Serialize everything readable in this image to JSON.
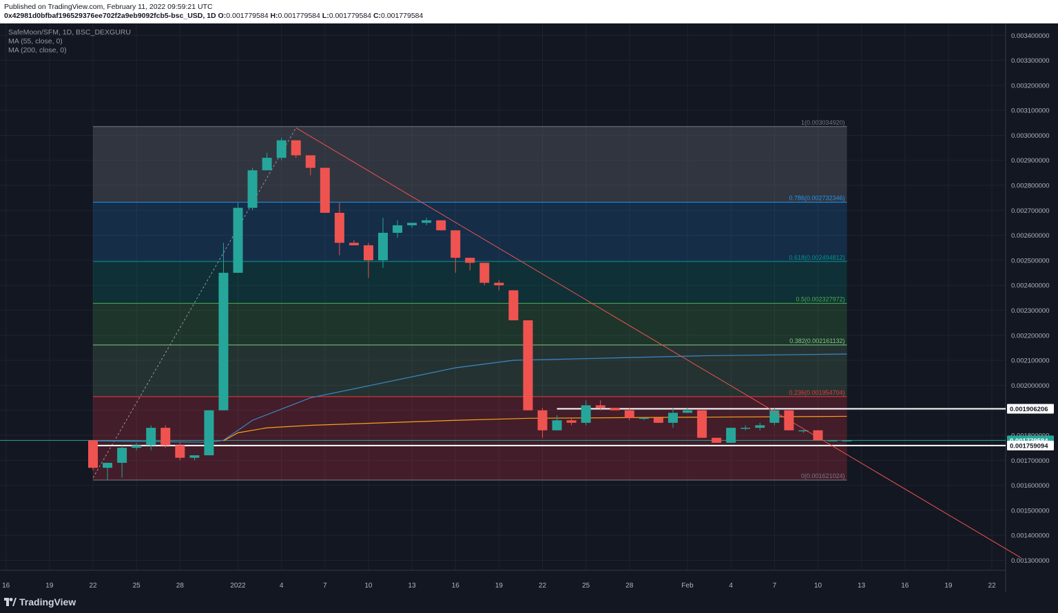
{
  "header": {
    "published": "Published on TradingView.com, February 11, 2022 09:59:21 UTC",
    "symbol_line": "0x42981d0bfbaf196529376ee702f2a9eb9092fcb5-bsc_USD, 1D",
    "ohlc": [
      {
        "k": "O:",
        "v": "0.001779584"
      },
      {
        "k": "H:",
        "v": "0.001779584"
      },
      {
        "k": "L:",
        "v": "0.001779584"
      },
      {
        "k": "C:",
        "v": "0.001779584"
      }
    ]
  },
  "legend": {
    "symbol": "SafeMoon/SFM, 1D, BSC_DEXGURU",
    "ma55": "MA (55, close, 0)",
    "ma200": "MA (200, close, 0)"
  },
  "footer": {
    "brand": "TradingView"
  },
  "colors": {
    "bg": "#131722",
    "up": "#26a69a",
    "down": "#ef5350",
    "ma55": "#f7a21b",
    "ma200": "#3b89c9",
    "trend": "#ef5350"
  },
  "chart_data": {
    "type": "candlestick",
    "y_range": [
      0.00126,
      0.00342
    ],
    "y_ticks": [
      "0.001300000",
      "0.001400000",
      "0.001500000",
      "0.001600000",
      "0.001700000",
      "0.001800000",
      "0.001900000",
      "0.002000000",
      "0.002100000",
      "0.002200000",
      "0.002300000",
      "0.002400000",
      "0.002500000",
      "0.002600000",
      "0.002700000",
      "0.002800000",
      "0.002900000",
      "0.003000000",
      "0.003100000",
      "0.003200000",
      "0.003300000",
      "0.003400000"
    ],
    "x_ticks": [
      {
        "i": -6,
        "label": "16"
      },
      {
        "i": -3,
        "label": "19"
      },
      {
        "i": 0,
        "label": "22"
      },
      {
        "i": 3,
        "label": "25"
      },
      {
        "i": 6,
        "label": "28"
      },
      {
        "i": 10,
        "label": "2022"
      },
      {
        "i": 13,
        "label": "4"
      },
      {
        "i": 16,
        "label": "7"
      },
      {
        "i": 19,
        "label": "10"
      },
      {
        "i": 22,
        "label": "13"
      },
      {
        "i": 25,
        "label": "16"
      },
      {
        "i": 28,
        "label": "19"
      },
      {
        "i": 31,
        "label": "22"
      },
      {
        "i": 34,
        "label": "25"
      },
      {
        "i": 37,
        "label": "28"
      },
      {
        "i": 41,
        "label": "Feb"
      },
      {
        "i": 44,
        "label": "4"
      },
      {
        "i": 47,
        "label": "7"
      },
      {
        "i": 50,
        "label": "10"
      },
      {
        "i": 53,
        "label": "13"
      },
      {
        "i": 56,
        "label": "16"
      },
      {
        "i": 59,
        "label": "19"
      },
      {
        "i": 62,
        "label": "22"
      }
    ],
    "candles": [
      [
        0.00178,
        0.00178,
        0.00166,
        0.00167
      ],
      [
        0.00167,
        0.00169,
        0.00162,
        0.00169
      ],
      [
        0.00169,
        0.00176,
        0.00163,
        0.00175
      ],
      [
        0.00175,
        0.00177,
        0.00174,
        0.00176
      ],
      [
        0.00176,
        0.00184,
        0.00174,
        0.00183
      ],
      [
        0.00183,
        0.00184,
        0.00175,
        0.00176
      ],
      [
        0.00176,
        0.00177,
        0.0017,
        0.00171
      ],
      [
        0.00171,
        0.00172,
        0.0017,
        0.00172
      ],
      [
        0.00172,
        0.0019,
        0.00172,
        0.0019
      ],
      [
        0.0019,
        0.00257,
        0.0019,
        0.00245
      ],
      [
        0.00245,
        0.00273,
        0.00245,
        0.00271
      ],
      [
        0.00271,
        0.00287,
        0.0027,
        0.00286
      ],
      [
        0.00286,
        0.00293,
        0.00288,
        0.00291
      ],
      [
        0.00291,
        0.00299,
        0.0029,
        0.00298
      ],
      [
        0.00298,
        0.00298,
        0.00291,
        0.00292
      ],
      [
        0.00292,
        0.00292,
        0.00284,
        0.00287
      ],
      [
        0.00287,
        0.00287,
        0.00269,
        0.00269
      ],
      [
        0.00269,
        0.00273,
        0.00252,
        0.00257
      ],
      [
        0.00257,
        0.00258,
        0.00256,
        0.00256
      ],
      [
        0.00256,
        0.00257,
        0.00243,
        0.0025
      ],
      [
        0.0025,
        0.00267,
        0.00247,
        0.00261
      ],
      [
        0.00261,
        0.00266,
        0.00259,
        0.00264
      ],
      [
        0.00264,
        0.00265,
        0.00263,
        0.00265
      ],
      [
        0.00265,
        0.00267,
        0.00264,
        0.00266
      ],
      [
        0.00266,
        0.00266,
        0.00262,
        0.00262
      ],
      [
        0.00262,
        0.00262,
        0.00245,
        0.00251
      ],
      [
        0.00251,
        0.00251,
        0.00246,
        0.00249
      ],
      [
        0.00249,
        0.00249,
        0.0024,
        0.00241
      ],
      [
        0.00241,
        0.00242,
        0.00238,
        0.0024
      ],
      [
        0.00238,
        0.00238,
        0.00226,
        0.00226
      ],
      [
        0.00226,
        0.00226,
        0.0019,
        0.0019
      ],
      [
        0.0019,
        0.00191,
        0.00179,
        0.00182
      ],
      [
        0.00182,
        0.00188,
        0.00182,
        0.00186
      ],
      [
        0.00186,
        0.00187,
        0.00184,
        0.00185
      ],
      [
        0.00185,
        0.00194,
        0.00184,
        0.00192
      ],
      [
        0.00192,
        0.00194,
        0.0019,
        0.00191
      ],
      [
        0.00191,
        0.00191,
        0.0019,
        0.0019
      ],
      [
        0.0019,
        0.00191,
        0.00186,
        0.00187
      ],
      [
        0.00187,
        0.00187,
        0.00186,
        0.00187
      ],
      [
        0.00187,
        0.00187,
        0.00185,
        0.00185
      ],
      [
        0.00185,
        0.00191,
        0.00183,
        0.00189
      ],
      [
        0.00189,
        0.00191,
        0.00189,
        0.0019
      ],
      [
        0.0019,
        0.0019,
        0.00179,
        0.00179
      ],
      [
        0.00179,
        0.00179,
        0.00177,
        0.00177
      ],
      [
        0.00177,
        0.00183,
        0.00177,
        0.00183
      ],
      [
        0.00183,
        0.00184,
        0.00182,
        0.00183
      ],
      [
        0.00183,
        0.00185,
        0.00182,
        0.00184
      ],
      [
        0.00185,
        0.00191,
        0.00184,
        0.0019
      ],
      [
        0.0019,
        0.0019,
        0.00182,
        0.00182
      ],
      [
        0.00182,
        0.00182,
        0.00181,
        0.00182
      ],
      [
        0.00182,
        0.00182,
        0.00178,
        0.00178
      ],
      [
        0.00178,
        0.00178,
        0.00178,
        0.00178
      ],
      [
        0.00178,
        0.00178,
        0.00178,
        0.00178
      ]
    ],
    "ma55": [
      [
        9,
        0.001778
      ],
      [
        10,
        0.00181
      ],
      [
        12,
        0.00183
      ],
      [
        15,
        0.00184
      ],
      [
        20,
        0.00185
      ],
      [
        25,
        0.00186
      ],
      [
        30,
        0.001868
      ],
      [
        40,
        0.001872
      ],
      [
        50,
        0.001875
      ],
      [
        52,
        0.001876
      ]
    ],
    "ma200": [
      [
        0,
        0.001778
      ],
      [
        8,
        0.001772
      ],
      [
        9,
        0.00178
      ],
      [
        11,
        0.00186
      ],
      [
        15,
        0.00195
      ],
      [
        20,
        0.00201
      ],
      [
        25,
        0.00207
      ],
      [
        29,
        0.0021
      ],
      [
        35,
        0.002108
      ],
      [
        42,
        0.002118
      ],
      [
        52,
        0.002125
      ]
    ],
    "fib": [
      {
        "label": "1(0.003034920)",
        "value": 0.00303492,
        "color": "#787b86",
        "fill": "rgba(120,123,134,0.30)"
      },
      {
        "label": "0.786(0.002732346)",
        "value": 0.002732346,
        "color": "#2196f3",
        "fill": "rgba(33,150,243,0.18)"
      },
      {
        "label": "0.618(0.002494812)",
        "value": 0.002494812,
        "color": "#009688",
        "fill": "rgba(0,150,136,0.20)"
      },
      {
        "label": "0.5(0.002327972)",
        "value": 0.002327972,
        "color": "#4caf50",
        "fill": "rgba(76,175,80,0.20)"
      },
      {
        "label": "0.382(0.002161132)",
        "value": 0.002161132,
        "color": "#81c784",
        "fill": "rgba(129,199,132,0.16)"
      },
      {
        "label": "0.236(0.001954704)",
        "value": 0.001954704,
        "color": "#f23645",
        "fill": "rgba(242,54,69,0.22)"
      },
      {
        "label": "0(0.001621024)",
        "value": 0.001621024,
        "color": "#787b86",
        "fill": null
      }
    ],
    "fib_range": [
      0,
      52
    ],
    "fib_anchor": [
      [
        0,
        0.00163
      ],
      [
        14,
        0.00303
      ]
    ],
    "trendline": [
      [
        14,
        0.00303
      ],
      [
        64,
        0.00131
      ]
    ],
    "levels": [
      {
        "label": "0.001906206",
        "value": 0.001906206,
        "from": 32
      },
      {
        "label": "0.001759094",
        "value": 0.001759094,
        "from": 0
      }
    ],
    "current": {
      "label": "0.001779584",
      "value": 0.001779584
    }
  }
}
